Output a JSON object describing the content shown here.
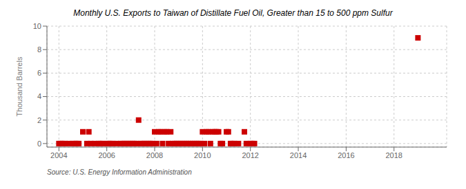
{
  "chart_data": {
    "type": "scatter",
    "title": "Monthly U.S. Exports to Taiwan of Distillate Fuel Oil, Greater than 15 to 500 ppm Sulfur",
    "ylabel": "Thousand Barrels",
    "annotations": [
      "Source: U.S. Energy Information Administration"
    ],
    "color": "#cc0000",
    "marker": "square",
    "grid": true,
    "xlim": [
      2003.5,
      2020.2
    ],
    "ylim": [
      -0.3,
      10.0
    ],
    "xticks": [
      2004,
      2006,
      2008,
      2010,
      2012,
      2014,
      2016,
      2018
    ],
    "yticks": [
      0,
      2,
      4,
      6,
      8,
      10
    ],
    "x": [
      2004.0,
      2004.08,
      2004.17,
      2004.25,
      2004.42,
      2004.58,
      2004.67,
      2004.75,
      2004.83,
      2005.0,
      2005.17,
      2005.25,
      2005.33,
      2005.5,
      2005.67,
      2005.75,
      2005.83,
      2006.0,
      2006.08,
      2006.17,
      2006.25,
      2006.42,
      2006.58,
      2006.67,
      2006.75,
      2006.83,
      2006.92,
      2007.0,
      2007.08,
      2007.17,
      2007.25,
      2007.33,
      2007.42,
      2007.5,
      2007.58,
      2007.67,
      2007.75,
      2007.83,
      2007.92,
      2008.0,
      2008.08,
      2008.17,
      2008.25,
      2008.33,
      2008.42,
      2008.5,
      2008.58,
      2008.67,
      2008.75,
      2008.83,
      2008.92,
      2009.0,
      2009.08,
      2009.17,
      2009.25,
      2009.33,
      2009.42,
      2009.5,
      2009.58,
      2009.67,
      2009.75,
      2009.83,
      2009.92,
      2010.0,
      2010.08,
      2010.17,
      2010.25,
      2010.33,
      2010.42,
      2010.5,
      2010.58,
      2010.67,
      2010.75,
      2010.83,
      2011.0,
      2011.08,
      2011.17,
      2011.25,
      2011.33,
      2011.5,
      2011.75,
      2011.83,
      2012.0,
      2012.08,
      2012.17,
      2019.0
    ],
    "values": [
      0.0,
      0.0,
      0.0,
      0.0,
      0.0,
      0.0,
      0.0,
      0.0,
      0.0,
      1.0,
      0.0,
      1.0,
      0.0,
      0.0,
      0.0,
      0.0,
      0.0,
      0.0,
      0.0,
      0.0,
      0.0,
      0.0,
      0.0,
      0.0,
      0.0,
      0.0,
      0.0,
      0.0,
      0.0,
      0.0,
      0.0,
      2.0,
      0.0,
      0.0,
      0.0,
      0.0,
      0.0,
      0.0,
      0.0,
      1.0,
      0.0,
      1.0,
      1.0,
      0.0,
      1.0,
      1.0,
      0.0,
      1.0,
      0.0,
      0.0,
      0.0,
      0.0,
      0.0,
      0.0,
      0.0,
      0.0,
      0.0,
      0.0,
      0.0,
      0.0,
      0.0,
      0.0,
      0.0,
      1.0,
      0.0,
      1.0,
      1.0,
      0.0,
      1.0,
      1.0,
      1.0,
      1.0,
      0.0,
      0.0,
      1.0,
      1.0,
      0.0,
      0.0,
      0.0,
      0.0,
      1.0,
      0.0,
      0.0,
      0.0,
      0.0,
      9.0
    ]
  }
}
